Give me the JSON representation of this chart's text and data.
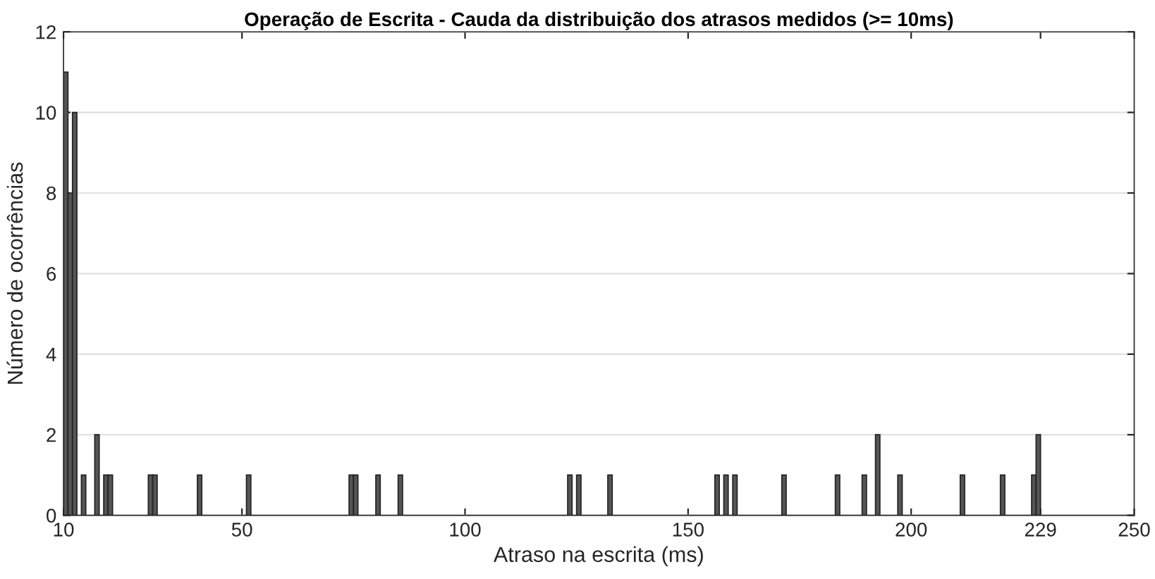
{
  "chart_data": {
    "type": "histogram",
    "title": "Operação de Escrita - Cauda da distribuição dos atrasos medidos (>= 10ms)",
    "xlabel": "Atraso na escrita (ms)",
    "ylabel": "Número de ocorrências",
    "bins": [
      10,
      11,
      12,
      13,
      14,
      15,
      17,
      18,
      19,
      20,
      21,
      29,
      30,
      31,
      40,
      41,
      51,
      52,
      74,
      75,
      76,
      80,
      81,
      85,
      86,
      123,
      124,
      125,
      126,
      132,
      133,
      156,
      157,
      158,
      159,
      160,
      161,
      171,
      172,
      183,
      184,
      189,
      190,
      192,
      193,
      197,
      198,
      211,
      212,
      220,
      221,
      227,
      228,
      229
    ],
    "values": [
      11,
      8,
      10,
      0,
      1,
      0,
      2,
      0,
      1,
      1,
      0,
      1,
      1,
      0,
      1,
      0,
      1,
      0,
      1,
      1,
      0,
      1,
      0,
      1,
      0,
      1,
      0,
      1,
      0,
      1,
      0,
      1,
      0,
      1,
      0,
      1,
      0,
      1,
      0,
      1,
      0,
      1,
      0,
      2,
      0,
      1,
      0,
      1,
      0,
      1,
      0,
      1,
      2
    ],
    "color": "#555555",
    "xlim": [
      10,
      250
    ],
    "xticks": [
      10,
      50,
      100,
      150,
      200,
      229,
      250
    ],
    "ylim": [
      0,
      12
    ],
    "yticks": [
      0,
      2,
      4,
      6,
      8,
      10,
      12
    ],
    "grid": "y"
  }
}
